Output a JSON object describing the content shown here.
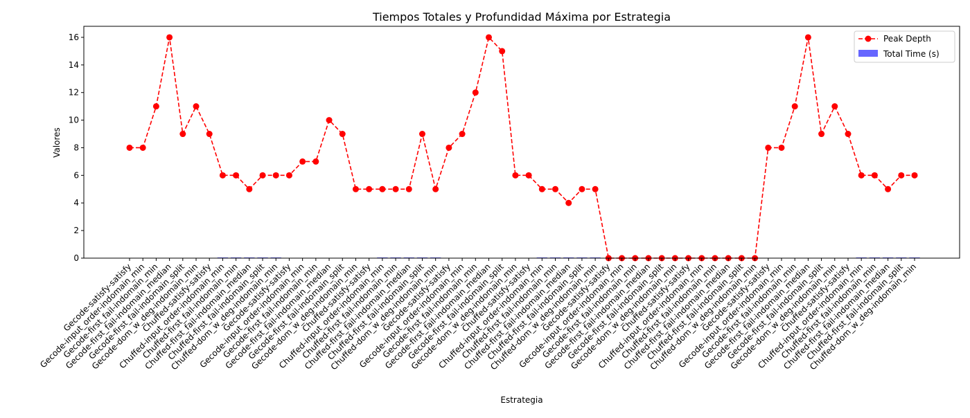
{
  "chart_data": {
    "type": "line",
    "title": "Tiempos Totales y Profundidad Máxima por Estrategia",
    "xlabel": "Estrategia",
    "ylabel": "Valores",
    "ylim": [
      0,
      16.8
    ],
    "yticks": [
      0,
      2,
      4,
      6,
      8,
      10,
      12,
      14,
      16
    ],
    "grid": false,
    "legend_position": "top-right",
    "categories": [
      "Gecode-satisfy-satisfy",
      "Gecode-input_order-indomain_min",
      "Gecode-first_fail-indomain_min",
      "Gecode-first_fail-indomain_median",
      "Gecode-first_fail-indomain_split",
      "Gecode-dom_w_deg-indomain_min",
      "Chuffed-satisfy-satisfy",
      "Chuffed-input_order-indomain_min",
      "Chuffed-first_fail-indomain_min",
      "Chuffed-first_fail-indomain_median",
      "Chuffed-first_fail-indomain_split",
      "Chuffed-dom_w_deg-indomain_min",
      "Gecode-satisfy-satisfy",
      "Gecode-input_order-indomain_min",
      "Gecode-first_fail-indomain_min",
      "Gecode-first_fail-indomain_median",
      "Gecode-first_fail-indomain_split",
      "Gecode-dom_w_deg-indomain_min",
      "Chuffed-satisfy-satisfy",
      "Chuffed-input_order-indomain_min",
      "Chuffed-first_fail-indomain_min",
      "Chuffed-first_fail-indomain_median",
      "Chuffed-first_fail-indomain_split",
      "Chuffed-dom_w_deg-indomain_min",
      "Gecode-satisfy-satisfy",
      "Gecode-input_order-indomain_min",
      "Gecode-first_fail-indomain_min",
      "Gecode-first_fail-indomain_median",
      "Gecode-first_fail-indomain_split",
      "Gecode-dom_w_deg-indomain_min",
      "Chuffed-satisfy-satisfy",
      "Chuffed-input_order-indomain_min",
      "Chuffed-first_fail-indomain_min",
      "Chuffed-first_fail-indomain_median",
      "Chuffed-first_fail-indomain_split",
      "Chuffed-dom_w_deg-indomain_min",
      "Gecode-satisfy-satisfy",
      "Gecode-input_order-indomain_min",
      "Gecode-first_fail-indomain_min",
      "Gecode-first_fail-indomain_median",
      "Gecode-first_fail-indomain_split",
      "Gecode-dom_w_deg-indomain_min",
      "Chuffed-satisfy-satisfy",
      "Chuffed-input_order-indomain_min",
      "Chuffed-first_fail-indomain_min",
      "Chuffed-first_fail-indomain_median",
      "Chuffed-first_fail-indomain_split",
      "Chuffed-dom_w_deg-indomain_min",
      "Gecode-satisfy-satisfy",
      "Gecode-input_order-indomain_min",
      "Gecode-first_fail-indomain_min",
      "Gecode-first_fail-indomain_median",
      "Gecode-first_fail-indomain_split",
      "Gecode-dom_w_deg-indomain_min",
      "Chuffed-satisfy-satisfy",
      "Chuffed-input_order-indomain_min",
      "Chuffed-first_fail-indomain_min",
      "Chuffed-first_fail-indomain_median",
      "Chuffed-first_fail-indomain_split",
      "Chuffed-dom_w_deg-indomain_min"
    ],
    "series": [
      {
        "name": "Peak Depth",
        "kind": "line",
        "style": "dashed",
        "marker": "circle",
        "color": "#ff0000",
        "values": [
          8,
          8,
          11,
          16,
          9,
          11,
          9,
          6,
          6,
          5,
          6,
          6,
          6,
          7,
          7,
          10,
          9,
          5,
          5,
          5,
          5,
          5,
          9,
          5,
          8,
          9,
          12,
          16,
          15,
          6,
          6,
          5,
          5,
          4,
          5,
          5,
          0,
          0,
          0,
          0,
          0,
          0,
          0,
          0,
          0,
          0,
          0,
          0,
          8,
          8,
          11,
          16,
          9,
          11,
          9,
          6,
          6,
          5,
          6,
          6
        ]
      },
      {
        "name": "Total Time (s)",
        "kind": "bar",
        "color": "#0000ff",
        "opacity": 0.6,
        "values": [
          0,
          0,
          0,
          0,
          0,
          0,
          0,
          0.02,
          0.03,
          0.02,
          0.02,
          0.03,
          0,
          0,
          0,
          0,
          0,
          0,
          0,
          0.01,
          0.02,
          0.01,
          0.01,
          0.02,
          0,
          0,
          0,
          0,
          0,
          0,
          0,
          0.02,
          0.02,
          0.02,
          0.02,
          0.02,
          0,
          0,
          0,
          0,
          0,
          0,
          0,
          0,
          0,
          0,
          0,
          0,
          0,
          0,
          0,
          0,
          0,
          0,
          0,
          0.02,
          0.01,
          0.02,
          0.02,
          0.02
        ]
      }
    ]
  }
}
